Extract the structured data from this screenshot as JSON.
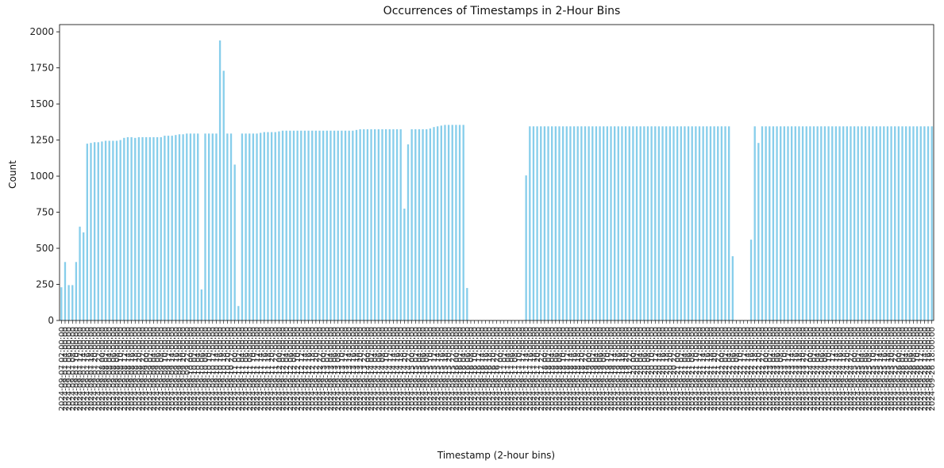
{
  "chart_data": {
    "type": "bar",
    "title": "Occurrences of Timestamps in 2-Hour Bins",
    "xlabel": "Timestamp (2-hour bins)",
    "ylabel": "Count",
    "ylim": [
      0,
      2050
    ],
    "yticks": [
      0,
      250,
      500,
      750,
      1000,
      1250,
      1500,
      1750,
      2000
    ],
    "grid": false,
    "legend": "none",
    "bar_color": "#87ceeb",
    "start": "2024-09-07 02:00:00",
    "step_hours": 2,
    "values": [
      230,
      405,
      245,
      245,
      405,
      650,
      610,
      1225,
      1230,
      1235,
      1235,
      1240,
      1245,
      1245,
      1245,
      1245,
      1250,
      1265,
      1270,
      1270,
      1265,
      1270,
      1270,
      1270,
      1270,
      1270,
      1270,
      1270,
      1280,
      1280,
      1280,
      1285,
      1290,
      1290,
      1295,
      1295,
      1295,
      1295,
      215,
      1295,
      1295,
      1295,
      1295,
      1940,
      1730,
      1295,
      1295,
      1080,
      100,
      1295,
      1295,
      1295,
      1295,
      1295,
      1300,
      1305,
      1305,
      1305,
      1305,
      1310,
      1315,
      1315,
      1315,
      1315,
      1315,
      1315,
      1315,
      1315,
      1315,
      1315,
      1315,
      1315,
      1315,
      1315,
      1315,
      1315,
      1315,
      1315,
      1315,
      1315,
      1320,
      1325,
      1325,
      1325,
      1325,
      1325,
      1325,
      1325,
      1325,
      1325,
      1325,
      1325,
      1325,
      775,
      1220,
      1325,
      1325,
      1325,
      1325,
      1325,
      1330,
      1340,
      1345,
      1350,
      1355,
      1355,
      1355,
      1355,
      1355,
      1355,
      225,
      0,
      0,
      0,
      0,
      0,
      0,
      0,
      0,
      0,
      0,
      0,
      0,
      0,
      0,
      0,
      1005,
      1345,
      1345,
      1345,
      1345,
      1345,
      1345,
      1345,
      1345,
      1345,
      1345,
      1345,
      1345,
      1345,
      1345,
      1345,
      1345,
      1345,
      1345,
      1345,
      1345,
      1345,
      1345,
      1345,
      1345,
      1345,
      1345,
      1345,
      1345,
      1345,
      1345,
      1345,
      1345,
      1345,
      1345,
      1345,
      1345,
      1345,
      1345,
      1345,
      1345,
      1345,
      1345,
      1345,
      1345,
      1345,
      1345,
      1345,
      1345,
      1345,
      1345,
      1345,
      1345,
      1345,
      1345,
      1345,
      445,
      0,
      0,
      0,
      0,
      560,
      1345,
      1230,
      1345,
      1345,
      1345,
      1345,
      1345,
      1345,
      1345,
      1345,
      1345,
      1345,
      1345,
      1345,
      1345,
      1345,
      1345,
      1345,
      1345,
      1345,
      1345,
      1345,
      1345,
      1345,
      1345,
      1345,
      1345,
      1345,
      1345,
      1345,
      1345,
      1345,
      1345,
      1345,
      1345,
      1345,
      1345,
      1345,
      1345,
      1345,
      1345,
      1345,
      1345,
      1345,
      1345,
      1345,
      1345,
      1345,
      1345
    ]
  }
}
